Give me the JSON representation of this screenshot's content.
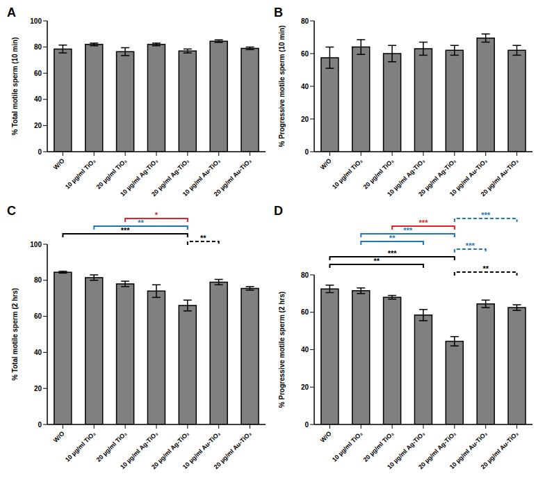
{
  "chart_data": [
    {
      "type": "bar",
      "title": "A",
      "y_label": "% Total motile sperm (10 min)",
      "categories": [
        "W/O",
        "10 µg/ml TiO₂",
        "20 µg/ml TiO₂",
        "10 µg/ml Ag-TiO₂",
        "20 µg/ml Ag-TiO₂",
        "10 µg/ml Au-TiO₂",
        "20 µg/ml Au-TiO₂"
      ],
      "values": [
        78.5,
        82,
        76.5,
        82,
        77,
        84.5,
        79
      ],
      "errors": [
        3,
        1,
        3,
        1,
        1.5,
        1,
        1
      ],
      "color": "#808080",
      "ylim": [
        0,
        100
      ],
      "yticks": [
        0,
        20,
        40,
        60,
        80,
        100
      ]
    },
    {
      "type": "bar",
      "title": "B",
      "y_label": "% Progressive motile sperm (10 min)",
      "categories": [
        "W/O",
        "10 µg/ml TiO₂",
        "20 µg/ml TiO₂",
        "10 µg/ml Ag-TiO₂",
        "20 µg/ml Ag-TiO₂",
        "10 µg/ml Au-TiO₂",
        "20 µg/ml Au-TiO₂"
      ],
      "values": [
        57.5,
        64,
        60,
        63,
        62,
        69.5,
        62
      ],
      "errors": [
        6.5,
        4.5,
        5,
        4,
        3,
        2.5,
        3
      ],
      "color": "#808080",
      "ylim": [
        0,
        80
      ],
      "yticks": [
        0,
        20,
        40,
        60,
        80
      ]
    },
    {
      "type": "bar",
      "title": "C",
      "y_label": "% Total motile sperm (2 hrs)",
      "categories": [
        "W/O",
        "10 µg/ml TiO₂",
        "20 µg/ml TiO₂",
        "10 µg/ml Ag-TiO₂",
        "20 µg/ml Ag-TiO₂",
        "10 µg/ml Au-TiO₂",
        "20 µg/ml Au-TiO₂"
      ],
      "values": [
        84.5,
        81.5,
        78,
        74,
        66,
        79,
        75.5
      ],
      "errors": [
        0.5,
        1.5,
        1.5,
        3.5,
        3,
        1.5,
        1
      ],
      "color": "#808080",
      "ylim": [
        0,
        100
      ],
      "yticks": [
        0,
        20,
        40,
        60,
        80,
        100
      ],
      "comparisons": [
        {
          "from": "20 µg/ml Ag-TiO₂",
          "to": "10 µg/ml Au-TiO₂",
          "label": "**",
          "color": "#000000",
          "line_style": "dashed"
        },
        {
          "from": "W/O",
          "to": "20 µg/ml Ag-TiO₂",
          "label": "***",
          "color": "#000000",
          "line_style": "solid"
        },
        {
          "from": "10 µg/ml TiO₂",
          "to": "20 µg/ml Ag-TiO₂",
          "label": "**",
          "color": "#1f77b4",
          "line_style": "solid"
        },
        {
          "from": "20 µg/ml TiO₂",
          "to": "20 µg/ml Ag-TiO₂",
          "label": "*",
          "color": "#e8202a",
          "line_style": "solid"
        }
      ]
    },
    {
      "type": "bar",
      "title": "D",
      "y_label": "% Progressive motile sperm (2 hrs)",
      "categories": [
        "W/O",
        "10 µg/ml TiO₂",
        "20 µg/ml TiO₂",
        "10 µg/ml Ag-TiO₂",
        "20 µg/ml Ag-TiO₂",
        "10 µg/ml Au-TiO₂",
        "20 µg/ml Au-TiO₂"
      ],
      "values": [
        72.5,
        71.5,
        68,
        58.5,
        44.5,
        64.5,
        62.5
      ],
      "errors": [
        2,
        1.5,
        1,
        3,
        2.5,
        2,
        1.5
      ],
      "color": "#808080",
      "ylim": [
        0,
        80
      ],
      "yticks": [
        0,
        20,
        40,
        60,
        80
      ],
      "comparisons": [
        {
          "from": "20 µg/ml Ag-TiO₂",
          "to": "20 µg/ml Au-TiO₂",
          "label": "**",
          "color": "#000000",
          "line_style": "dashed"
        },
        {
          "from": "W/O",
          "to": "10 µg/ml Ag-TiO₂",
          "label": "**",
          "color": "#000000",
          "line_style": "solid"
        },
        {
          "from": "W/O",
          "to": "20 µg/ml Ag-TiO₂",
          "label": "***",
          "color": "#000000",
          "line_style": "solid"
        },
        {
          "from": "20 µg/ml Ag-TiO₂",
          "to": "10 µg/ml Au-TiO₂",
          "label": "***",
          "color": "#1f77b4",
          "line_style": "dashed"
        },
        {
          "from": "10 µg/ml TiO₂",
          "to": "10 µg/ml Ag-TiO₂",
          "label": "**",
          "color": "#1f77b4",
          "line_style": "solid"
        },
        {
          "from": "10 µg/ml TiO₂",
          "to": "20 µg/ml Ag-TiO₂",
          "label": "***",
          "color": "#1f77b4",
          "line_style": "solid"
        },
        {
          "from": "20 µg/ml TiO₂",
          "to": "20 µg/ml Ag-TiO₂",
          "label": "***",
          "color": "#e8202a",
          "line_style": "solid"
        },
        {
          "from": "20 µg/ml Ag-TiO₂",
          "to": "20 µg/ml Au-TiO₂",
          "label": "***",
          "color": "#1f77b4",
          "line_style": "dashed"
        }
      ]
    }
  ]
}
